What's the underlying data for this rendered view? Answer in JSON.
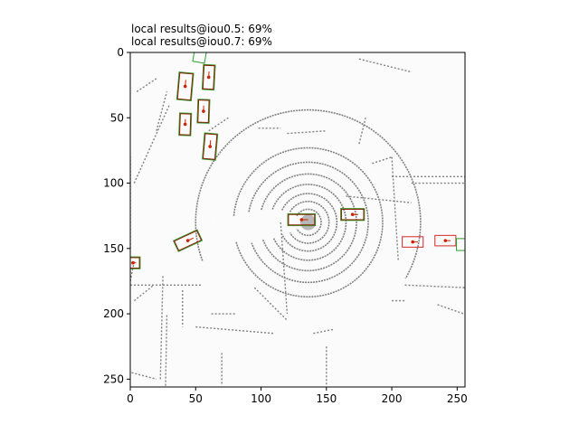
{
  "chart_data": {
    "type": "scatter",
    "title": [
      "local results@iou0.5: 69%",
      "local results@iou0.7: 69%"
    ],
    "xlabel": "",
    "ylabel": "",
    "xlim": [
      0,
      256
    ],
    "ylim": [
      256,
      0
    ],
    "y_inverted": true,
    "xticks": [
      0,
      50,
      100,
      150,
      200,
      250
    ],
    "yticks": [
      0,
      50,
      100,
      150,
      200,
      250
    ],
    "grid": false,
    "background": "#fbfbfb",
    "colors": {
      "point_cloud": "#808080",
      "ground_truth_box": "#2ca02c",
      "prediction_box": "#d62728",
      "matched_box": "#8b1a00",
      "center_point": "#cc2200"
    },
    "point_cloud": {
      "center": [
        136,
        130
      ],
      "rings": [
        {
          "r": 10,
          "start": -150,
          "end": 150
        },
        {
          "r": 16,
          "start": -150,
          "end": 150
        },
        {
          "r": 22,
          "start": -155,
          "end": 155
        },
        {
          "r": 29,
          "start": -160,
          "end": 155
        },
        {
          "r": 37,
          "start": -165,
          "end": 160
        },
        {
          "r": 46,
          "start": -170,
          "end": 160
        },
        {
          "r": 57,
          "start": -175,
          "end": 165
        },
        {
          "r": 70,
          "start": -180,
          "end": 180
        },
        {
          "r": 86,
          "start": -200,
          "end": 30
        }
      ],
      "segments": [
        [
          [
            0,
            150
          ],
          [
            0,
            80
          ]
        ],
        [
          [
            3,
            100
          ],
          [
            30,
            40
          ]
        ],
        [
          [
            20,
            60
          ],
          [
            28,
            30
          ]
        ],
        [
          [
            3,
            160
          ],
          [
            0,
            175
          ]
        ],
        [
          [
            0,
            178
          ],
          [
            55,
            178
          ]
        ],
        [
          [
            3,
            190
          ],
          [
            18,
            178
          ]
        ],
        [
          [
            23,
            250
          ],
          [
            25,
            170
          ]
        ],
        [
          [
            27,
            255
          ],
          [
            28,
            200
          ]
        ],
        [
          [
            40,
            182
          ],
          [
            40,
            210
          ]
        ],
        [
          [
            62,
            200
          ],
          [
            80,
            200
          ]
        ],
        [
          [
            70,
            230
          ],
          [
            70,
            255
          ]
        ],
        [
          [
            95,
            180
          ],
          [
            120,
            205
          ]
        ],
        [
          [
            140,
            215
          ],
          [
            155,
            212
          ]
        ],
        [
          [
            150,
            225
          ],
          [
            150,
            255
          ]
        ],
        [
          [
            210,
            178
          ],
          [
            256,
            180
          ]
        ],
        [
          [
            200,
            190
          ],
          [
            210,
            190
          ]
        ],
        [
          [
            235,
            193
          ],
          [
            255,
            200
          ]
        ],
        [
          [
            200,
            95
          ],
          [
            256,
            95
          ]
        ],
        [
          [
            215,
            100
          ],
          [
            256,
            100
          ]
        ],
        [
          [
            185,
            85
          ],
          [
            200,
            80
          ]
        ],
        [
          [
            175,
            70
          ],
          [
            180,
            50
          ]
        ],
        [
          [
            200,
            80
          ],
          [
            205,
            160
          ]
        ],
        [
          [
            175,
            5
          ],
          [
            215,
            15
          ]
        ],
        [
          [
            98,
            58
          ],
          [
            115,
            58
          ]
        ],
        [
          [
            120,
            62
          ],
          [
            150,
            60
          ]
        ],
        [
          [
            115,
            130
          ],
          [
            120,
            200
          ]
        ],
        [
          [
            50,
            210
          ],
          [
            110,
            215
          ]
        ],
        [
          [
            165,
            110
          ],
          [
            215,
            115
          ]
        ],
        [
          [
            60,
            60
          ],
          [
            75,
            50
          ]
        ],
        [
          [
            5,
            30
          ],
          [
            20,
            20
          ]
        ],
        [
          [
            1,
            245
          ],
          [
            20,
            250
          ]
        ]
      ]
    },
    "boxes": [
      {
        "cx": 42,
        "cy": 26,
        "l": 20,
        "w": 10,
        "angle": -85,
        "gt": true,
        "pred": true
      },
      {
        "cx": 60,
        "cy": 19,
        "l": 18,
        "w": 8,
        "angle": -87,
        "gt": true,
        "pred": true
      },
      {
        "cx": 53,
        "cy": 3,
        "l": 8,
        "w": 8,
        "angle": -80,
        "gt": true,
        "pred": false
      },
      {
        "cx": 56,
        "cy": 45,
        "l": 17,
        "w": 8,
        "angle": -88,
        "gt": true,
        "pred": true
      },
      {
        "cx": 42,
        "cy": 55,
        "l": 16,
        "w": 8,
        "angle": -88,
        "gt": true,
        "pred": true
      },
      {
        "cx": 61,
        "cy": 72,
        "l": 19,
        "w": 9,
        "angle": -85,
        "gt": true,
        "pred": true
      },
      {
        "cx": 131,
        "cy": 128,
        "l": 20,
        "w": 8,
        "angle": 0,
        "gt": true,
        "pred": true
      },
      {
        "cx": 170,
        "cy": 124,
        "l": 17,
        "w": 8,
        "angle": 0,
        "gt": true,
        "pred": true
      },
      {
        "cx": 44,
        "cy": 144,
        "l": 19,
        "w": 8,
        "angle": -25,
        "gt": true,
        "pred": true
      },
      {
        "cx": 216,
        "cy": 145,
        "l": 16,
        "w": 8,
        "angle": 0,
        "gt": false,
        "pred": true
      },
      {
        "cx": 241,
        "cy": 144,
        "l": 16,
        "w": 8,
        "angle": 0,
        "gt": false,
        "pred": true
      },
      {
        "cx": 254,
        "cy": 147,
        "l": 8,
        "w": 8,
        "angle": 0,
        "gt": true,
        "pred": false
      },
      {
        "cx": 2,
        "cy": 161,
        "l": 10,
        "w": 8,
        "angle": 0,
        "gt": true,
        "pred": true
      }
    ]
  }
}
